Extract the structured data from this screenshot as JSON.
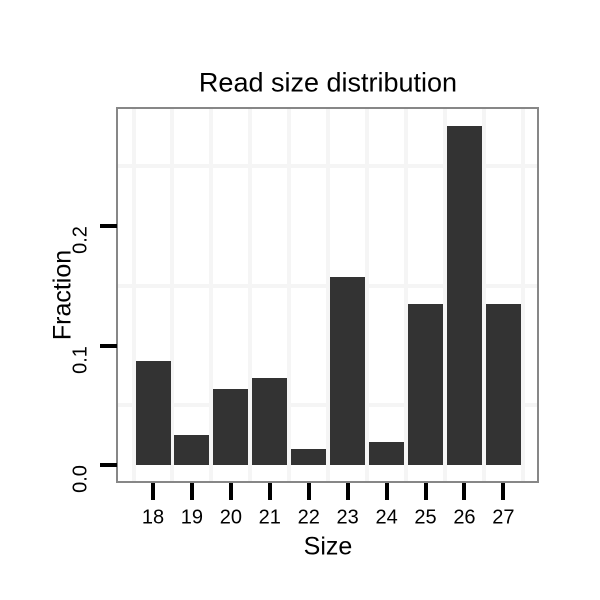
{
  "chart_data": {
    "type": "bar",
    "title": "Read size distribution",
    "xlabel": "Size",
    "ylabel": "Fraction",
    "categories": [
      "18",
      "19",
      "20",
      "21",
      "22",
      "23",
      "24",
      "25",
      "26",
      "27"
    ],
    "values": [
      0.087,
      0.025,
      0.064,
      0.073,
      0.013,
      0.157,
      0.019,
      0.135,
      0.284,
      0.135
    ],
    "yticks": [
      0.0,
      0.1,
      0.2
    ],
    "ytick_labels": [
      "0.0",
      "0.1",
      "0.2"
    ],
    "ylim": [
      0,
      0.298
    ],
    "grid": "minor-only",
    "grid_minor_y": [
      0.05,
      0.15,
      0.25
    ],
    "legend": "none",
    "colors": {
      "bar_fill": "#333333",
      "panel_border": "#878787",
      "gridline": "#f5f5f5",
      "tick": "#000000",
      "text": "#000000",
      "background": "#ffffff"
    }
  }
}
